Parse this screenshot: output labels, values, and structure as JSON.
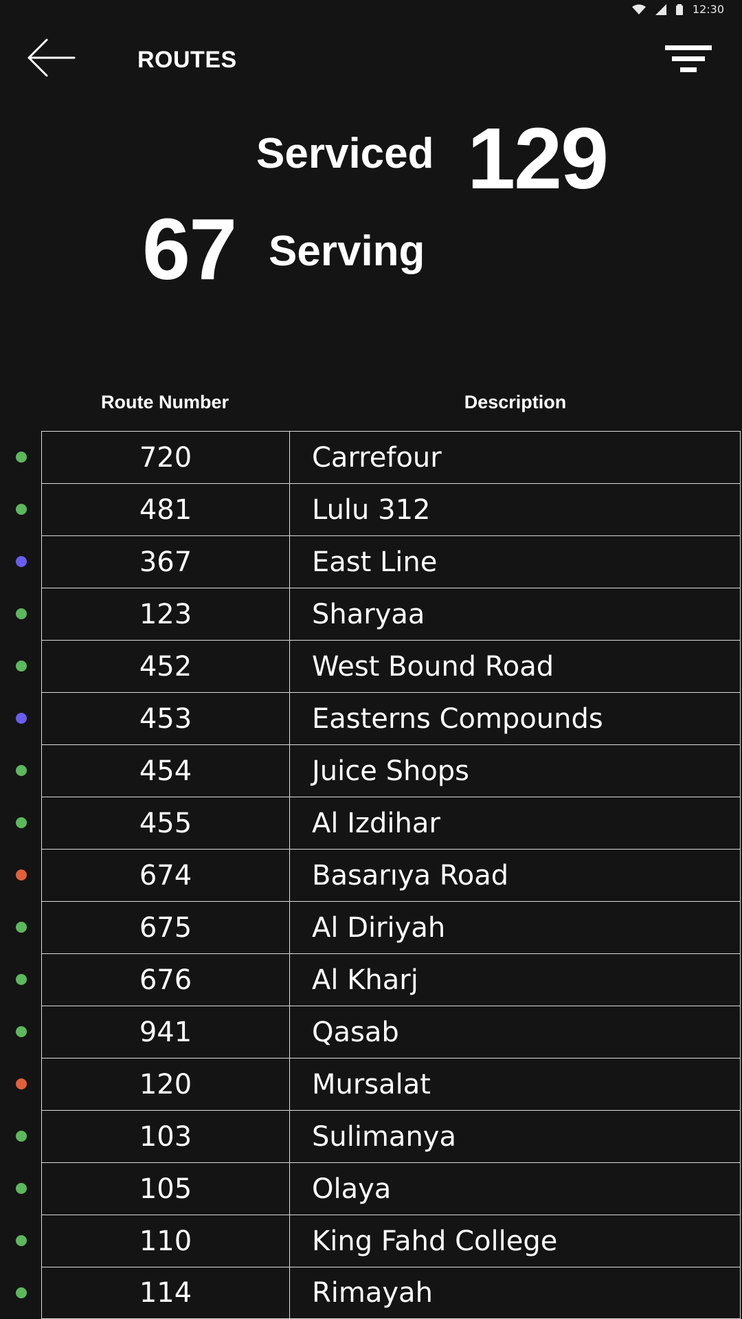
{
  "status_bar": {
    "time": "12:30",
    "icons": [
      "wifi-icon",
      "signal-icon",
      "battery-icon"
    ]
  },
  "header": {
    "title": "ROUTES",
    "back_icon": "arrow-left-icon",
    "filter_icon": "filter-icon"
  },
  "stats": {
    "serviced_label": "Serviced",
    "serviced_count": "129",
    "serving_count": "67",
    "serving_label": "Serving"
  },
  "colors": {
    "green": "#5cb85c",
    "blue": "#6b5cf0",
    "orange": "#e0603a"
  },
  "table": {
    "columns": [
      "Route Number",
      "Description"
    ],
    "rows": [
      {
        "route": "720",
        "description": "Carrefour",
        "status": "green"
      },
      {
        "route": "481",
        "description": "Lulu 312",
        "status": "green"
      },
      {
        "route": "367",
        "description": "East Line",
        "status": "blue"
      },
      {
        "route": "123",
        "description": "Sharyaa",
        "status": "green"
      },
      {
        "route": "452",
        "description": "West Bound Road",
        "status": "green"
      },
      {
        "route": "453",
        "description": "Easterns Compounds",
        "status": "blue"
      },
      {
        "route": "454",
        "description": "Juice Shops",
        "status": "green"
      },
      {
        "route": "455",
        "description": "Al Izdihar",
        "status": "green"
      },
      {
        "route": "674",
        "description": "Basarıya Road",
        "status": "orange"
      },
      {
        "route": "675",
        "description": "Al Diriyah",
        "status": "green"
      },
      {
        "route": "676",
        "description": "Al Kharj",
        "status": "green"
      },
      {
        "route": "941",
        "description": "Qasab",
        "status": "green"
      },
      {
        "route": "120",
        "description": "Mursalat",
        "status": "orange"
      },
      {
        "route": "103",
        "description": "Sulimanya",
        "status": "green"
      },
      {
        "route": "105",
        "description": "Olaya",
        "status": "green"
      },
      {
        "route": "110",
        "description": "King Fahd College",
        "status": "green"
      },
      {
        "route": "114",
        "description": "Rimayah",
        "status": "green"
      }
    ]
  }
}
